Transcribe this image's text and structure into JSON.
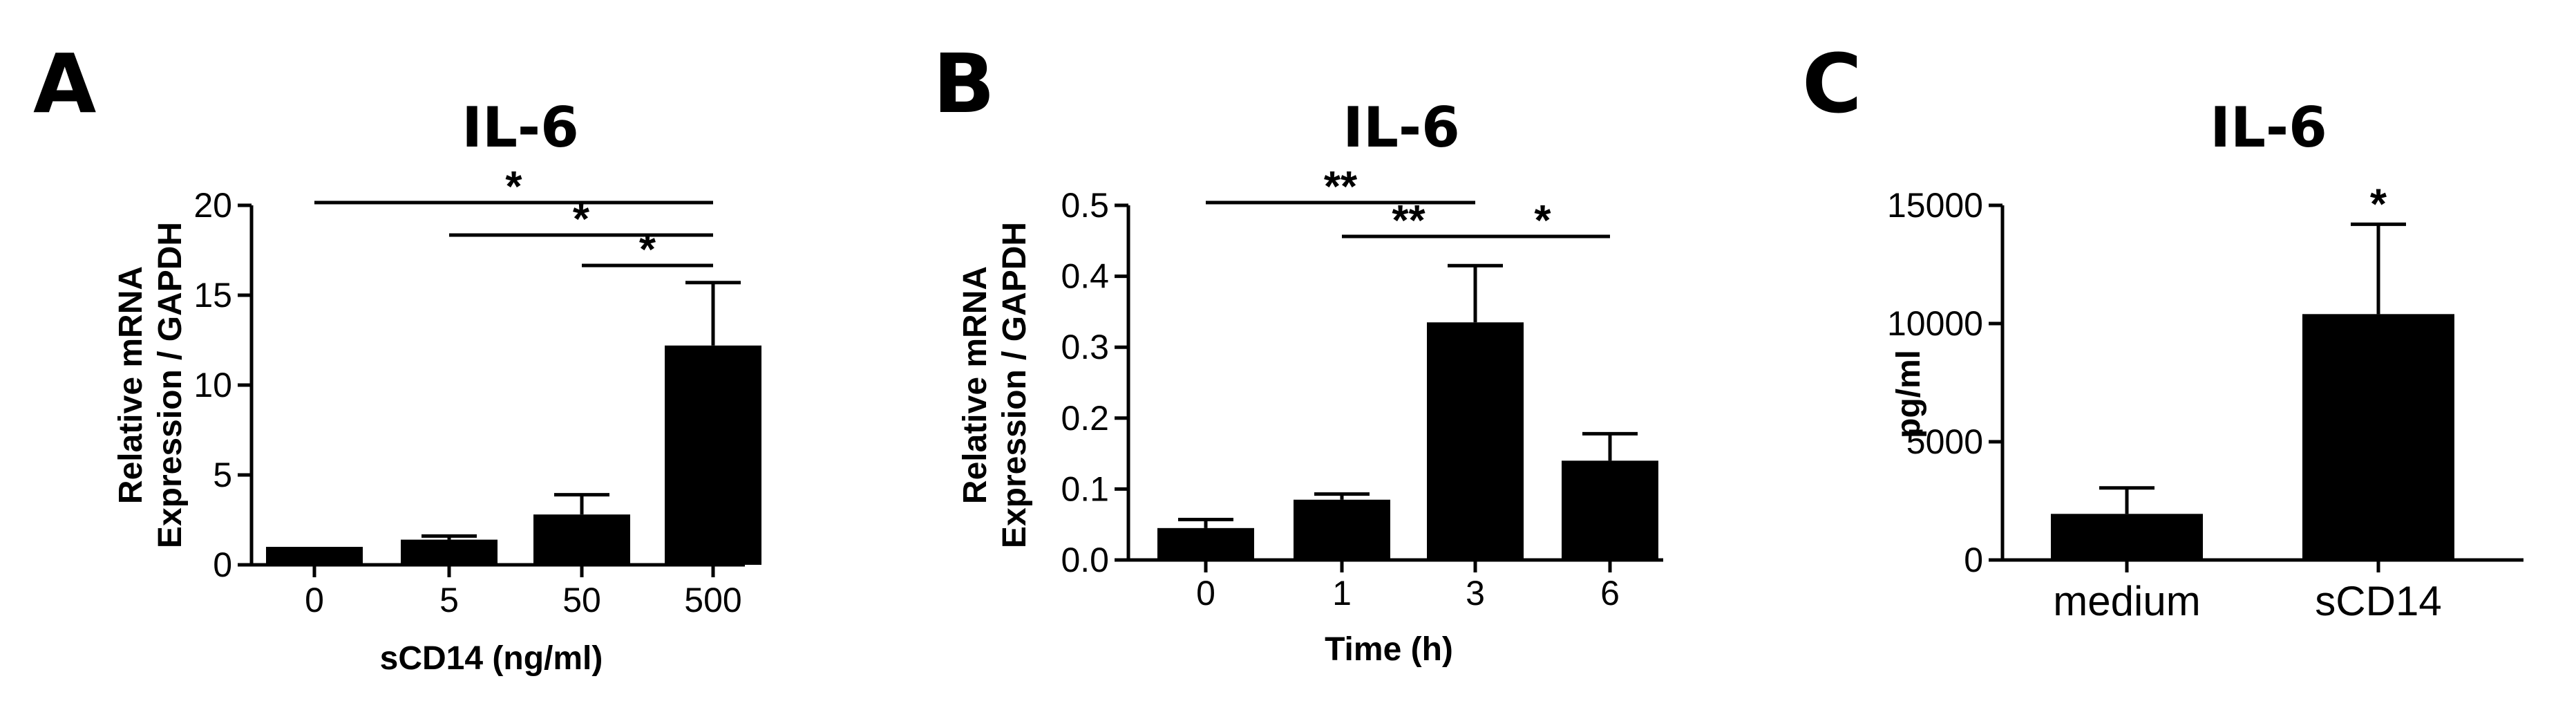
{
  "chart_data": [
    {
      "panel": "A",
      "type": "bar",
      "title": "IL-6",
      "xlabel": "sCD14 (ng/ml)",
      "ylabel": [
        "Relative mRNA",
        "Expression / GAPDH"
      ],
      "categories": [
        "0",
        "5",
        "50",
        "500"
      ],
      "values": [
        1.0,
        1.4,
        2.8,
        12.2
      ],
      "errors": [
        0.0,
        0.2,
        1.1,
        3.5
      ],
      "ylim": [
        0,
        20
      ],
      "yticks": [
        "0",
        "5",
        "10",
        "15",
        "20"
      ],
      "ytick_values": [
        0,
        5,
        10,
        15,
        20
      ],
      "significance": [
        {
          "from": 0,
          "to": 3,
          "label": "*"
        },
        {
          "from": 1,
          "to": 3,
          "label": "*"
        },
        {
          "from": 2,
          "to": 3,
          "label": "*"
        }
      ],
      "bar_color": "#000000"
    },
    {
      "panel": "B",
      "type": "bar",
      "title": "IL-6",
      "xlabel": "Time (h)",
      "ylabel": [
        "Relative mRNA",
        "Expression / GAPDH"
      ],
      "categories": [
        "0",
        "1",
        "3",
        "6"
      ],
      "values": [
        0.045,
        0.085,
        0.335,
        0.14
      ],
      "errors": [
        0.012,
        0.008,
        0.08,
        0.038
      ],
      "ylim": [
        0,
        0.5
      ],
      "yticks": [
        "0.0",
        "0.1",
        "0.2",
        "0.3",
        "0.4",
        "0.5"
      ],
      "ytick_values": [
        0,
        0.1,
        0.2,
        0.3,
        0.4,
        0.5
      ],
      "significance": [
        {
          "from": 0,
          "to": 2,
          "label": "**"
        },
        {
          "from": 1,
          "to": 2,
          "label": "**"
        },
        {
          "from": 2,
          "to": 3,
          "label": "*"
        }
      ],
      "bar_color": "#000000"
    },
    {
      "panel": "C",
      "type": "bar",
      "title": "IL-6",
      "xlabel": "",
      "ylabel": [
        "pg/ml"
      ],
      "categories": [
        "medium",
        "sCD14"
      ],
      "values": [
        1950,
        10400
      ],
      "errors": [
        1100,
        3800
      ],
      "ylim": [
        0,
        15000
      ],
      "yticks": [
        "0",
        "5000",
        "10000",
        "15000"
      ],
      "ytick_values": [
        0,
        5000,
        10000,
        15000
      ],
      "significance": [
        {
          "from": 1,
          "to": 1,
          "label": "*"
        }
      ],
      "bar_color": "#000000"
    }
  ]
}
